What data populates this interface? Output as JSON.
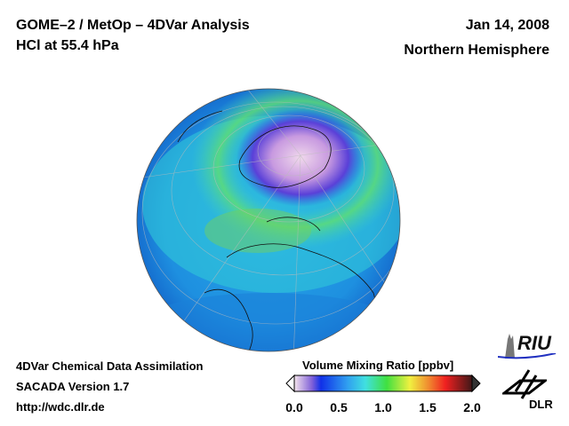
{
  "header": {
    "title_line1": "GOME–2 / MetOp – 4DVar Analysis",
    "title_line2": "HCl at 55.4 hPa",
    "date": "Jan 14, 2008",
    "region": "Northern Hemisphere"
  },
  "footer": {
    "line1": "4DVar Chemical Data Assimilation",
    "line2": "SACADA Version 1.7",
    "line3": "http://wdc.dlr.de"
  },
  "colorbar": {
    "label": "Volume Mixing Ratio [ppbv]",
    "ticks": [
      "0.0",
      "0.5",
      "1.0",
      "1.5",
      "2.0"
    ],
    "range": [
      0,
      2
    ]
  },
  "logos": {
    "riu": "RIU",
    "dlr": "DLR"
  },
  "colors": {
    "background": "#ffffff",
    "ocean_base": "#1e9be0"
  }
}
